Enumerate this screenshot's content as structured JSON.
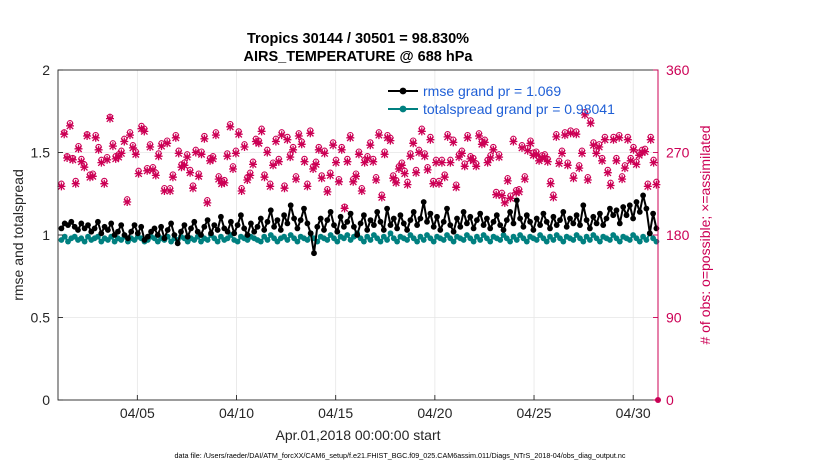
{
  "chart_data": {
    "type": "line",
    "title_line1": "Tropics 30144 / 30501 = 98.830%",
    "title_line2": "AIRS_TEMPERATURE @ 688 hPa",
    "xlabel": "Apr.01,2018 00:00:00 start",
    "ylabel_left": "rmse and totalspread",
    "ylabel_right": "# of obs: o=possible; ×=assimilated",
    "ylim_left": [
      0,
      2
    ],
    "ylim_right": [
      0,
      360
    ],
    "xlim_days": [
      1.0,
      31.25
    ],
    "left_ticks": [
      "0",
      "0.5",
      "1",
      "1.5",
      "2"
    ],
    "left_tick_values": [
      0,
      0.5,
      1,
      1.5,
      2
    ],
    "right_ticks": [
      "0",
      "90",
      "180",
      "270",
      "360"
    ],
    "right_tick_values": [
      0,
      90,
      180,
      270,
      360
    ],
    "x_ticks": [
      "04/05",
      "04/10",
      "04/15",
      "04/20",
      "04/25",
      "04/30"
    ],
    "x_tick_days": [
      5,
      10,
      15,
      20,
      25,
      30
    ],
    "grid": true,
    "legend_position": "top-right",
    "footnote": "data file: /Users/raeder/DAI/ATM_forcXX/CAM6_setup/f.e21.FHIST_BGC.f09_025.CAM6assim.011/Diags_NTrS_2018-04/obs_diag_output.nc",
    "colors": {
      "rmse": "#000000",
      "spread": "#008080",
      "obs": "#cc0055",
      "legend_text": "#1f5fd6",
      "grid": "#e6e6e6"
    },
    "series": [
      {
        "name": "rmse",
        "label": "rmse grand pr = 1.069",
        "values": [
          1.04,
          1.07,
          1.06,
          1.08,
          1.05,
          1.03,
          1.07,
          1.04,
          1.06,
          1.02,
          1.04,
          1.08,
          1.01,
          1.05,
          1.03,
          1.07,
          1.0,
          1.02,
          1.06,
          1.0,
          0.98,
          1.02,
          1.06,
          1.01,
          1.05,
          0.97,
          0.99,
          1.02,
          1.04,
          1.0,
          1.05,
          0.98,
          1.03,
          1.07,
          1.0,
          0.95,
          1.02,
          1.06,
          0.99,
          1.04,
          1.08,
          1.02,
          1.0,
          1.05,
          1.09,
          1.01,
          1.06,
          1.03,
          1.11,
          1.04,
          1.02,
          1.08,
          1.01,
          1.06,
          1.12,
          1.04,
          1.0,
          1.07,
          1.02,
          1.05,
          1.1,
          1.03,
          1.08,
          1.15,
          1.05,
          1.09,
          1.03,
          1.12,
          1.07,
          1.18,
          1.1,
          1.04,
          1.09,
          1.16,
          1.07,
          1.01,
          0.89,
          1.05,
          1.1,
          1.03,
          1.09,
          1.14,
          1.06,
          1.02,
          1.11,
          1.05,
          1.08,
          1.13,
          1.05,
          1.0,
          1.07,
          1.12,
          1.03,
          1.09,
          1.06,
          1.14,
          1.08,
          1.03,
          1.16,
          1.06,
          1.1,
          1.04,
          1.12,
          1.07,
          1.03,
          1.09,
          1.14,
          1.06,
          1.1,
          1.2,
          1.08,
          1.13,
          1.05,
          1.11,
          1.03,
          1.08,
          1.16,
          1.06,
          1.02,
          1.1,
          1.05,
          1.14,
          1.07,
          1.11,
          1.04,
          1.09,
          1.13,
          1.06,
          1.1,
          1.04,
          1.08,
          1.12,
          1.06,
          1.03,
          1.09,
          1.14,
          1.07,
          1.21,
          1.1,
          1.05,
          1.12,
          1.08,
          1.03,
          1.1,
          1.06,
          1.13,
          1.08,
          1.04,
          1.11,
          1.06,
          1.09,
          1.14,
          1.05,
          1.1,
          1.07,
          1.12,
          1.06,
          1.18,
          1.09,
          1.04,
          1.11,
          1.07,
          1.13,
          1.06,
          1.1,
          1.16,
          1.12,
          1.15,
          1.07,
          1.17,
          1.12,
          1.18,
          1.1,
          1.2,
          1.14,
          1.24,
          1.16,
          1.01,
          1.13,
          1.04
        ],
        "marker": "filled-circle"
      },
      {
        "name": "totalspread",
        "label": "totalspread grand pr = 0.98041",
        "values": [
          0.97,
          0.99,
          0.96,
          0.98,
          0.99,
          0.97,
          0.98,
          0.96,
          0.99,
          0.97,
          0.98,
          0.99,
          0.96,
          0.98,
          0.97,
          0.99,
          0.96,
          0.98,
          0.97,
          0.99,
          0.96,
          0.98,
          0.97,
          0.99,
          0.98,
          0.96,
          0.97,
          0.99,
          0.98,
          0.96,
          0.98,
          0.97,
          0.99,
          0.96,
          0.98,
          0.97,
          0.99,
          0.98,
          0.96,
          0.98,
          0.97,
          0.99,
          0.96,
          0.98,
          0.97,
          1.0,
          0.98,
          0.96,
          0.99,
          0.97,
          0.98,
          1.0,
          0.97,
          0.96,
          0.99,
          0.98,
          0.97,
          0.99,
          0.98,
          0.97,
          0.96,
          0.99,
          0.97,
          1.0,
          0.98,
          0.96,
          0.98,
          0.99,
          0.97,
          1.0,
          0.98,
          0.96,
          0.99,
          0.98,
          0.97,
          1.01,
          0.98,
          0.96,
          0.99,
          0.98,
          0.97,
          1.0,
          0.98,
          0.96,
          0.99,
          0.98,
          1.0,
          0.97,
          0.99,
          1.01,
          0.98,
          0.96,
          0.99,
          0.97,
          1.0,
          0.98,
          0.96,
          0.99,
          0.97,
          1.01,
          0.98,
          0.96,
          0.99,
          0.98,
          0.97,
          1.0,
          0.98,
          0.96,
          0.99,
          0.97,
          1.0,
          0.98,
          0.96,
          0.99,
          0.98,
          0.97,
          1.0,
          0.98,
          0.96,
          0.99,
          0.98,
          0.97,
          1.0,
          0.98,
          0.96,
          0.99,
          0.97,
          1.0,
          0.98,
          0.96,
          0.99,
          0.98,
          0.97,
          1.0,
          0.98,
          0.96,
          0.99,
          0.97,
          1.0,
          0.98,
          0.96,
          0.99,
          0.98,
          0.97,
          1.0,
          0.98,
          0.96,
          0.99,
          0.97,
          1.0,
          0.98,
          0.96,
          0.99,
          0.98,
          0.97,
          1.0,
          0.98,
          0.96,
          0.99,
          0.97,
          1.0,
          0.98,
          0.96,
          0.99,
          0.98,
          0.97,
          1.0,
          0.98,
          0.96,
          0.99,
          0.98,
          0.97,
          1.0,
          0.98,
          0.96,
          0.99,
          0.97,
          1.01,
          0.98,
          0.96
        ],
        "marker": "filled-circle"
      },
      {
        "name": "obs_possible",
        "label": "o=possible",
        "axis": "right",
        "values": [
          236,
          292,
          266,
          302,
          264,
          239,
          277,
          263,
          257,
          290,
          246,
          247,
          289,
          276,
          262,
          239,
          265,
          309,
          280,
          266,
          268,
          272,
          285,
          219,
          292,
          278,
          271,
          250,
          299,
          296,
          253,
          279,
          254,
          248,
          269,
          280,
          231,
          283,
          231,
          246,
          289,
          272,
          257,
          259,
          268,
          251,
          234,
          273,
          247,
          271,
          288,
          218,
          264,
          266,
          292,
          244,
          239,
          240,
          269,
          301,
          255,
          272,
          293,
          231,
          279,
          243,
          248,
          260,
          285,
          283,
          296,
          246,
          273,
          236,
          259,
          285,
          263,
          292,
          234,
          287,
          268,
          276,
          244,
          291,
          282,
          263,
          236,
          294,
          255,
          260,
          276,
          245,
          272,
          230,
          248,
          281,
          262,
          241,
          276,
          211,
          263,
          289,
          241,
          247,
          271,
          231,
          262,
          266,
          281,
          263,
          243,
          292,
          224,
          271,
          289,
          286,
          245,
          240,
          255,
          259,
          250,
          238,
          269,
          283,
          251,
          273,
          296,
          269,
          254,
          287,
          239,
          262,
          239,
          262,
          246,
          290,
          262,
          284,
          235,
          268,
          272,
          258,
          289,
          266,
          264,
          258,
          291,
          282,
          284,
          262,
          267,
          276,
          227,
          268,
          226,
          218,
          242,
          223,
          285,
          229,
          230,
          278,
          244,
          275,
          283,
          270,
          271,
          264,
          267,
          268,
          263,
          239,
          224,
          290,
          261,
          272,
          292,
          259,
          294,
          245,
          293,
          256,
          272,
          314,
          243,
          305,
          281,
          272,
          279,
          264,
          287,
          251,
          237,
          287,
          264,
          289,
          244,
          256,
          287,
          264,
          276,
          260,
          270,
          273,
          274,
          236,
          287,
          262,
          238
        ],
        "marker": "circle"
      },
      {
        "name": "obs_assimilated",
        "label": "×=assimilated",
        "axis": "right",
        "values": [
          233,
          290,
          264,
          299,
          262,
          236,
          274,
          260,
          254,
          288,
          243,
          244,
          286,
          273,
          259,
          236,
          262,
          307,
          277,
          263,
          265,
          269,
          282,
          216,
          289,
          275,
          268,
          247,
          296,
          293,
          250,
          276,
          251,
          245,
          266,
          277,
          228,
          280,
          228,
          243,
          286,
          269,
          254,
          256,
          265,
          248,
          231,
          270,
          244,
          268,
          285,
          215,
          261,
          263,
          289,
          241,
          236,
          237,
          266,
          298,
          252,
          269,
          290,
          228,
          276,
          240,
          245,
          257,
          282,
          280,
          293,
          243,
          270,
          233,
          256,
          282,
          260,
          289,
          231,
          284,
          265,
          273,
          241,
          288,
          279,
          260,
          233,
          291,
          252,
          257,
          273,
          242,
          269,
          227,
          245,
          278,
          259,
          238,
          273,
          209,
          260,
          286,
          238,
          244,
          268,
          228,
          259,
          263,
          278,
          260,
          240,
          289,
          221,
          268,
          286,
          283,
          242,
          237,
          252,
          256,
          247,
          235,
          266,
          280,
          248,
          270,
          293,
          266,
          251,
          284,
          236,
          259,
          236,
          259,
          243,
          287,
          259,
          281,
          232,
          265,
          269,
          255,
          286,
          263,
          261,
          255,
          288,
          279,
          281,
          259,
          264,
          273,
          224,
          265,
          223,
          215,
          239,
          220,
          282,
          226,
          227,
          275,
          241,
          272,
          280,
          267,
          268,
          261,
          264,
          265,
          260,
          236,
          221,
          287,
          258,
          269,
          289,
          256,
          291,
          242,
          290,
          253,
          269,
          311,
          240,
          302,
          278,
          269,
          276,
          261,
          284,
          248,
          234,
          284,
          261,
          286,
          241,
          253,
          284,
          261,
          273,
          257,
          267,
          270,
          271,
          233,
          284,
          259,
          235
        ],
        "marker": "asterisk"
      }
    ]
  }
}
